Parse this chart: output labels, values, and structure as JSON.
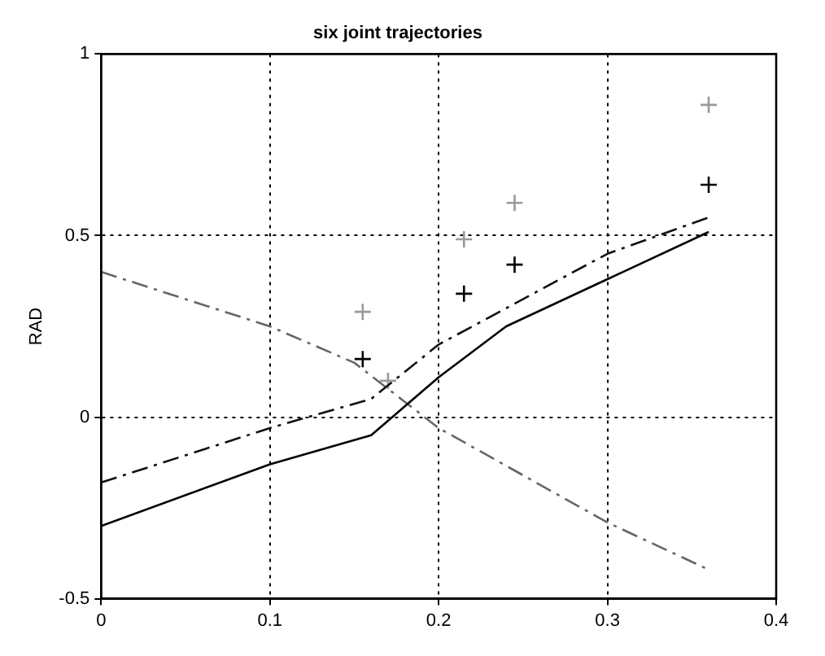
{
  "chart_data": {
    "type": "line",
    "title": "six joint trajectories",
    "ylabel": "RAD",
    "xlim": [
      0,
      0.4
    ],
    "xticks": [
      0,
      0.1,
      0.2,
      0.3,
      0.4
    ],
    "ylim": [
      -0.5,
      1
    ],
    "yticks": [
      -0.5,
      0,
      0.5,
      1
    ],
    "grid": true,
    "legend": false,
    "series": [
      {
        "type": "line",
        "color": "#000000",
        "line_style": "solid",
        "marker": "none",
        "x": [
          0,
          0.1,
          0.16,
          0.2,
          0.24,
          0.3,
          0.36
        ],
        "values": [
          -0.3,
          -0.13,
          -0.05,
          0.11,
          0.25,
          0.38,
          0.51
        ]
      },
      {
        "type": "line",
        "color": "#111111",
        "line_style": "dashed",
        "marker": "none",
        "x": [
          0,
          0.1,
          0.16,
          0.2,
          0.3,
          0.36
        ],
        "values": [
          -0.18,
          -0.03,
          0.05,
          0.2,
          0.45,
          0.55
        ]
      },
      {
        "type": "line",
        "color": "#666666",
        "line_style": "dashed",
        "marker": "none",
        "x": [
          0,
          0.1,
          0.15,
          0.2,
          0.3,
          0.36
        ],
        "values": [
          0.4,
          0.25,
          0.15,
          -0.03,
          -0.29,
          -0.42
        ]
      },
      {
        "type": "scatter",
        "color": "#000000",
        "marker": "cross",
        "x": [
          0.155,
          0.215,
          0.245,
          0.36
        ],
        "values": [
          0.16,
          0.34,
          0.42,
          0.64
        ]
      },
      {
        "type": "scatter",
        "color": "#999999",
        "marker": "cross",
        "x": [
          0.155,
          0.17,
          0.215,
          0.245,
          0.36
        ],
        "values": [
          0.29,
          0.1,
          0.49,
          0.59,
          0.86
        ]
      }
    ]
  }
}
